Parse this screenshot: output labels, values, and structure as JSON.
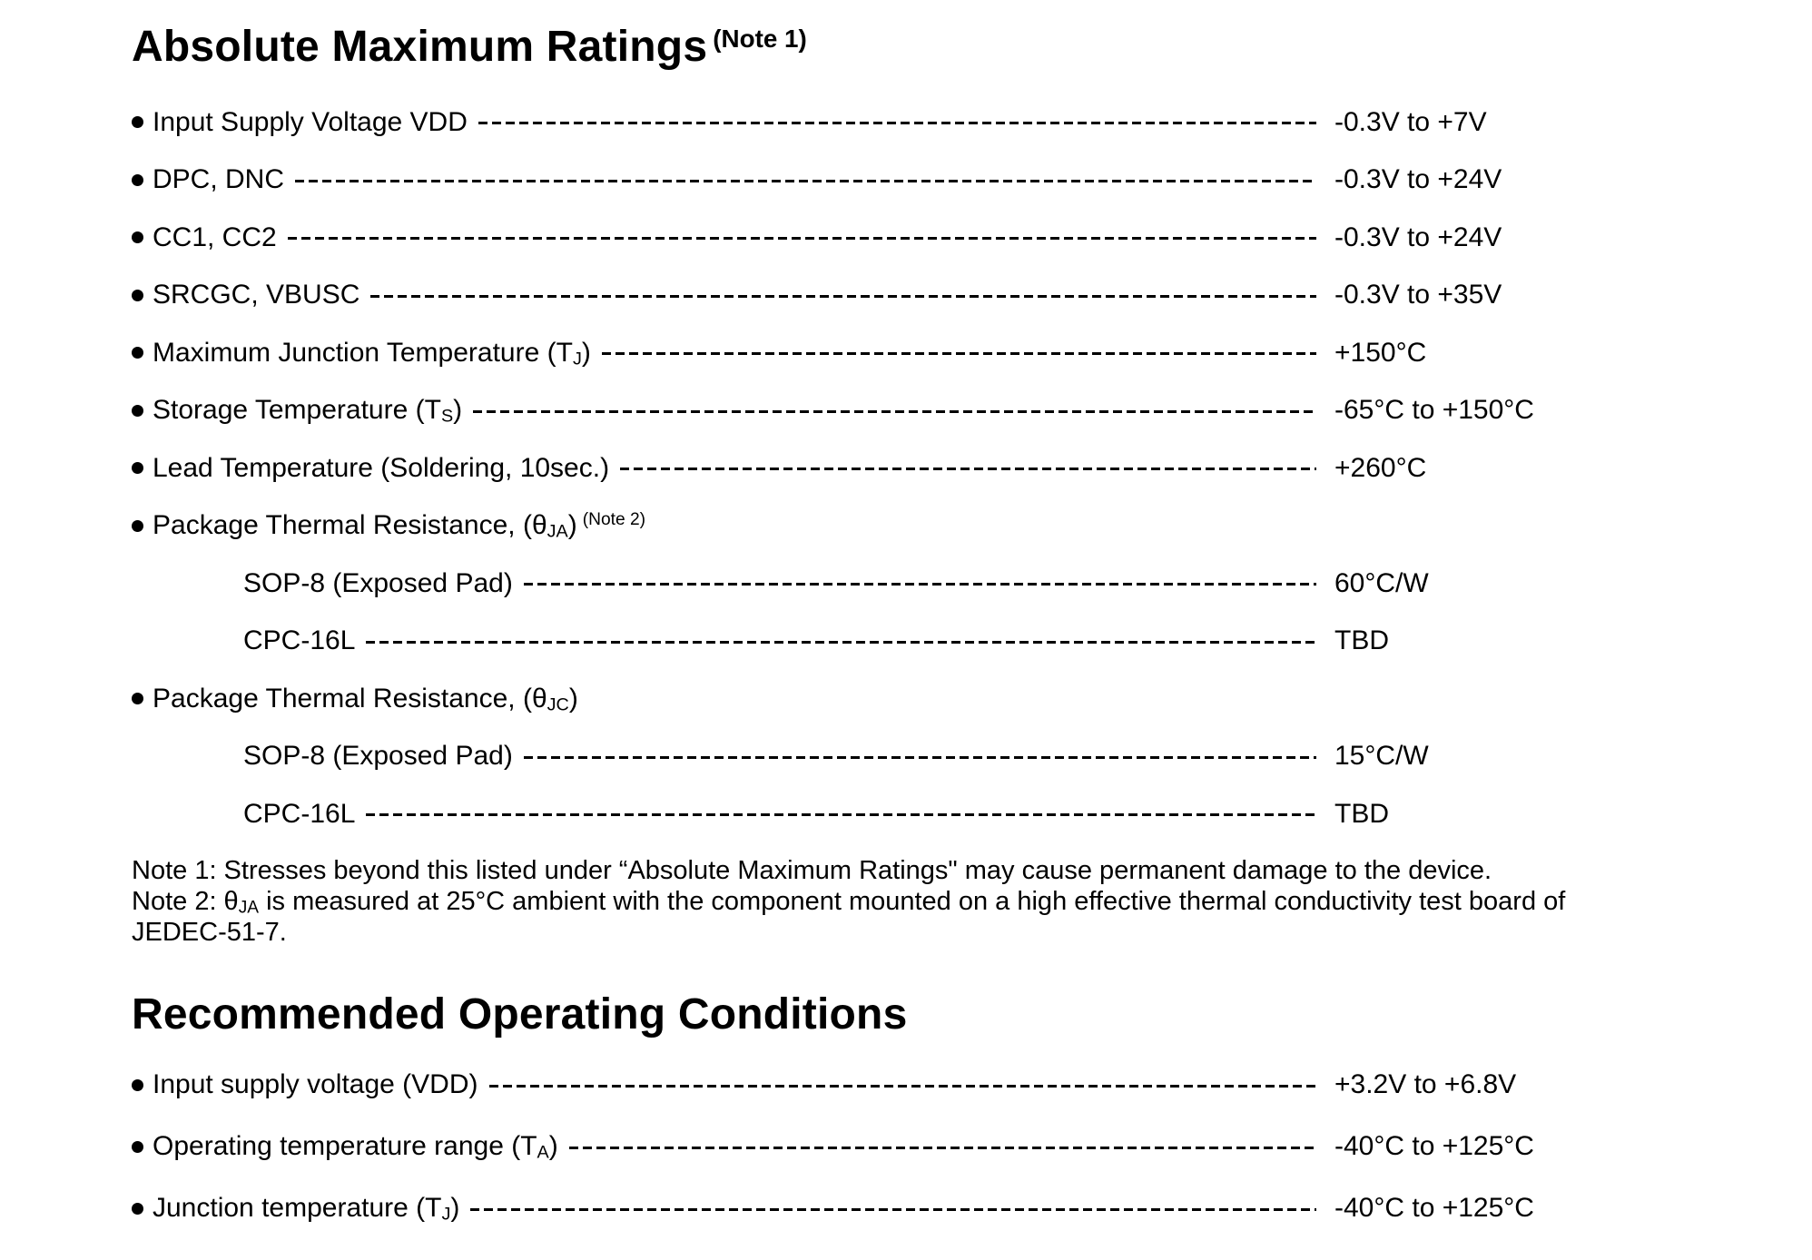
{
  "colors": {
    "text": "#000000",
    "background": "#ffffff"
  },
  "abs_max": {
    "title": "Absolute Maximum Ratings",
    "title_note": "(Note 1)",
    "rows": [
      {
        "pre": "Input Supply Voltage VDD",
        "value": "-0.3V to +7V"
      },
      {
        "pre": "DPC, DNC",
        "value": "-0.3V to +24V"
      },
      {
        "pre": "CC1, CC2",
        "value": "-0.3V to +24V"
      },
      {
        "pre": "SRCGC, VBUSC",
        "value": "-0.3V to +35V"
      },
      {
        "pre": "Maximum Junction Temperature (T",
        "sub": "J",
        "post": ")",
        "value": "+150°C"
      },
      {
        "pre": "Storage Temperature (T",
        "sub": "S",
        "post": ")",
        "value": "-65°C to +150°C"
      },
      {
        "pre": "Lead Temperature (Soldering, 10sec.)",
        "value": "+260°C"
      },
      {
        "pre": "Package Thermal Resistance, (θ",
        "sub": "JA",
        "post": ")",
        "note": "(Note 2)"
      },
      {
        "pre": "SOP-8 (Exposed Pad)",
        "value": "60°C/W"
      },
      {
        "pre": "CPC-16L",
        "value": "TBD"
      },
      {
        "pre": "Package Thermal Resistance, (θ",
        "sub": "JC",
        "post": ")"
      },
      {
        "pre": "SOP-8 (Exposed Pad)",
        "value": "15°C/W"
      },
      {
        "pre": "CPC-16L",
        "value": "TBD"
      }
    ]
  },
  "notes": {
    "note1": "Note 1: Stresses beyond this listed under “Absolute Maximum Ratings\" may cause permanent damage to the device.",
    "note2_pre": "Note 2: θ",
    "note2_sub": "JA",
    "note2_post": " is measured at 25°C ambient with the component mounted on a high effective thermal conductivity test board of JEDEC-51-7."
  },
  "rec_op": {
    "title": "Recommended Operating Conditions",
    "rows": [
      {
        "pre": "Input supply voltage (VDD)",
        "value": "+3.2V to +6.8V"
      },
      {
        "pre": "Operating temperature range (T",
        "sub": "A",
        "post": ")",
        "value": "-40°C to +125°C"
      },
      {
        "pre": "Junction temperature (T",
        "sub": "J",
        "post": ")",
        "value": "-40°C to +125°C"
      }
    ]
  }
}
